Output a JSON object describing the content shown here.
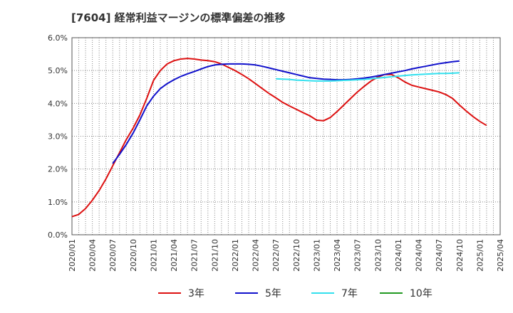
{
  "chart_data": {
    "type": "line",
    "title": "[7604]  経常利益マージンの標準偏差の推移",
    "xlabel": "",
    "ylabel": "",
    "x_ticks": [
      "2020/01",
      "2020/04",
      "2020/07",
      "2020/10",
      "2021/01",
      "2021/04",
      "2021/07",
      "2021/10",
      "2022/01",
      "2022/04",
      "2022/07",
      "2022/10",
      "2023/01",
      "2023/04",
      "2023/07",
      "2023/10",
      "2024/01",
      "2024/04",
      "2024/07",
      "2024/10",
      "2025/01",
      "2025/04"
    ],
    "y_ticks": [
      "0.0%",
      "1.0%",
      "2.0%",
      "3.0%",
      "4.0%",
      "5.0%",
      "6.0%"
    ],
    "ylim": [
      0,
      6
    ],
    "y_unit": "%",
    "grid": true,
    "legend_position": "bottom",
    "series": [
      {
        "name": "3年",
        "color": "#dd1111",
        "points": [
          [
            "2020/01",
            0.55
          ],
          [
            "2020/02",
            0.62
          ],
          [
            "2020/03",
            0.8
          ],
          [
            "2020/04",
            1.05
          ],
          [
            "2020/05",
            1.35
          ],
          [
            "2020/06",
            1.7
          ],
          [
            "2020/07",
            2.1
          ],
          [
            "2020/08",
            2.5
          ],
          [
            "2020/09",
            2.9
          ],
          [
            "2020/10",
            3.25
          ],
          [
            "2020/11",
            3.65
          ],
          [
            "2020/12",
            4.15
          ],
          [
            "2021/01",
            4.7
          ],
          [
            "2021/02",
            5.0
          ],
          [
            "2021/03",
            5.2
          ],
          [
            "2021/04",
            5.3
          ],
          [
            "2021/05",
            5.35
          ],
          [
            "2021/06",
            5.37
          ],
          [
            "2021/07",
            5.35
          ],
          [
            "2021/08",
            5.32
          ],
          [
            "2021/09",
            5.3
          ],
          [
            "2021/10",
            5.27
          ],
          [
            "2021/11",
            5.2
          ],
          [
            "2021/12",
            5.1
          ],
          [
            "2022/01",
            5.0
          ],
          [
            "2022/02",
            4.88
          ],
          [
            "2022/03",
            4.75
          ],
          [
            "2022/04",
            4.6
          ],
          [
            "2022/05",
            4.45
          ],
          [
            "2022/06",
            4.3
          ],
          [
            "2022/07",
            4.17
          ],
          [
            "2022/08",
            4.03
          ],
          [
            "2022/09",
            3.92
          ],
          [
            "2022/10",
            3.82
          ],
          [
            "2022/11",
            3.72
          ],
          [
            "2022/12",
            3.62
          ],
          [
            "2023/01",
            3.49
          ],
          [
            "2023/02",
            3.47
          ],
          [
            "2023/03",
            3.57
          ],
          [
            "2023/04",
            3.75
          ],
          [
            "2023/05",
            3.95
          ],
          [
            "2023/06",
            4.15
          ],
          [
            "2023/07",
            4.35
          ],
          [
            "2023/08",
            4.52
          ],
          [
            "2023/09",
            4.68
          ],
          [
            "2023/10",
            4.8
          ],
          [
            "2023/11",
            4.88
          ],
          [
            "2023/12",
            4.88
          ],
          [
            "2024/01",
            4.78
          ],
          [
            "2024/02",
            4.65
          ],
          [
            "2024/03",
            4.55
          ],
          [
            "2024/04",
            4.5
          ],
          [
            "2024/05",
            4.45
          ],
          [
            "2024/06",
            4.4
          ],
          [
            "2024/07",
            4.35
          ],
          [
            "2024/08",
            4.27
          ],
          [
            "2024/09",
            4.15
          ],
          [
            "2024/10",
            3.95
          ],
          [
            "2024/11",
            3.77
          ],
          [
            "2024/12",
            3.6
          ],
          [
            "2025/01",
            3.45
          ],
          [
            "2025/02",
            3.33
          ]
        ]
      },
      {
        "name": "5年",
        "color": "#1111cc",
        "points": [
          [
            "2020/07",
            2.17
          ],
          [
            "2020/08",
            2.45
          ],
          [
            "2020/09",
            2.75
          ],
          [
            "2020/10",
            3.1
          ],
          [
            "2020/11",
            3.5
          ],
          [
            "2020/12",
            3.92
          ],
          [
            "2021/01",
            4.22
          ],
          [
            "2021/02",
            4.45
          ],
          [
            "2021/03",
            4.6
          ],
          [
            "2021/04",
            4.72
          ],
          [
            "2021/05",
            4.82
          ],
          [
            "2021/06",
            4.9
          ],
          [
            "2021/07",
            4.97
          ],
          [
            "2021/08",
            5.05
          ],
          [
            "2021/09",
            5.12
          ],
          [
            "2021/10",
            5.17
          ],
          [
            "2021/11",
            5.19
          ],
          [
            "2021/12",
            5.2
          ],
          [
            "2022/01",
            5.2
          ],
          [
            "2022/02",
            5.2
          ],
          [
            "2022/03",
            5.19
          ],
          [
            "2022/04",
            5.17
          ],
          [
            "2022/05",
            5.13
          ],
          [
            "2022/06",
            5.08
          ],
          [
            "2022/07",
            5.03
          ],
          [
            "2022/08",
            4.98
          ],
          [
            "2022/09",
            4.93
          ],
          [
            "2022/10",
            4.88
          ],
          [
            "2022/11",
            4.83
          ],
          [
            "2022/12",
            4.78
          ],
          [
            "2023/01",
            4.76
          ],
          [
            "2023/02",
            4.74
          ],
          [
            "2023/03",
            4.73
          ],
          [
            "2023/04",
            4.72
          ],
          [
            "2023/05",
            4.72
          ],
          [
            "2023/06",
            4.73
          ],
          [
            "2023/07",
            4.75
          ],
          [
            "2023/08",
            4.77
          ],
          [
            "2023/09",
            4.8
          ],
          [
            "2023/10",
            4.84
          ],
          [
            "2023/11",
            4.88
          ],
          [
            "2023/12",
            4.92
          ],
          [
            "2024/01",
            4.96
          ],
          [
            "2024/02",
            5.0
          ],
          [
            "2024/03",
            5.05
          ],
          [
            "2024/04",
            5.09
          ],
          [
            "2024/05",
            5.13
          ],
          [
            "2024/06",
            5.17
          ],
          [
            "2024/07",
            5.21
          ],
          [
            "2024/08",
            5.24
          ],
          [
            "2024/09",
            5.27
          ],
          [
            "2024/10",
            5.29
          ]
        ]
      },
      {
        "name": "7年",
        "color": "#33e0ee",
        "points": [
          [
            "2022/07",
            4.75
          ],
          [
            "2022/08",
            4.74
          ],
          [
            "2022/09",
            4.73
          ],
          [
            "2022/10",
            4.71
          ],
          [
            "2022/11",
            4.7
          ],
          [
            "2022/12",
            4.69
          ],
          [
            "2023/01",
            4.68
          ],
          [
            "2023/02",
            4.68
          ],
          [
            "2023/03",
            4.68
          ],
          [
            "2023/04",
            4.69
          ],
          [
            "2023/05",
            4.7
          ],
          [
            "2023/06",
            4.71
          ],
          [
            "2023/07",
            4.72
          ],
          [
            "2023/08",
            4.73
          ],
          [
            "2023/09",
            4.75
          ],
          [
            "2023/10",
            4.77
          ],
          [
            "2023/11",
            4.79
          ],
          [
            "2023/12",
            4.81
          ],
          [
            "2024/01",
            4.83
          ],
          [
            "2024/02",
            4.85
          ],
          [
            "2024/03",
            4.87
          ],
          [
            "2024/04",
            4.88
          ],
          [
            "2024/05",
            4.89
          ],
          [
            "2024/06",
            4.9
          ],
          [
            "2024/07",
            4.91
          ],
          [
            "2024/08",
            4.91
          ],
          [
            "2024/09",
            4.92
          ],
          [
            "2024/10",
            4.93
          ]
        ]
      },
      {
        "name": "10年",
        "color": "#229922",
        "points": []
      }
    ]
  }
}
